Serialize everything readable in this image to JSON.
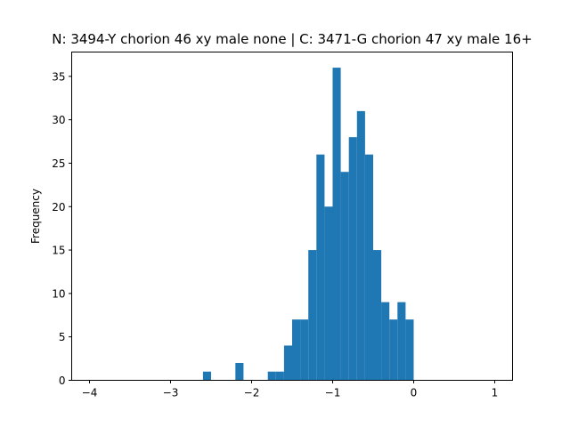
{
  "chart_data": {
    "type": "bar",
    "title": "N: 3494-Y chorion 46 xy male none | C: 3471-G chorion 47 xy male 16+",
    "xlabel": "",
    "ylabel": "Frequency",
    "xlim": [
      -4.22,
      1.22
    ],
    "ylim": [
      0,
      37.8
    ],
    "xticks": [
      -4,
      -3,
      -2,
      -1,
      0,
      1
    ],
    "xtick_labels": [
      "−4",
      "−3",
      "−2",
      "−1",
      "0",
      "1"
    ],
    "yticks": [
      0,
      5,
      10,
      15,
      20,
      25,
      30,
      35
    ],
    "ytick_labels": [
      "0",
      "5",
      "10",
      "15",
      "20",
      "25",
      "30",
      "35"
    ],
    "bin_width": 0.1,
    "bins": [
      {
        "x": -2.6,
        "value": 1
      },
      {
        "x": -2.2,
        "value": 2
      },
      {
        "x": -1.8,
        "value": 1
      },
      {
        "x": -1.7,
        "value": 1
      },
      {
        "x": -1.6,
        "value": 4
      },
      {
        "x": -1.5,
        "value": 7
      },
      {
        "x": -1.4,
        "value": 7
      },
      {
        "x": -1.3,
        "value": 15
      },
      {
        "x": -1.2,
        "value": 26
      },
      {
        "x": -1.1,
        "value": 20
      },
      {
        "x": -1.0,
        "value": 36
      },
      {
        "x": -0.9,
        "value": 24
      },
      {
        "x": -0.8,
        "value": 28
      },
      {
        "x": -0.7,
        "value": 31
      },
      {
        "x": -0.6,
        "value": 26
      },
      {
        "x": -0.5,
        "value": 15
      },
      {
        "x": -0.4,
        "value": 9
      },
      {
        "x": -0.3,
        "value": 7
      },
      {
        "x": -0.2,
        "value": 9
      },
      {
        "x": -0.1,
        "value": 7
      }
    ],
    "bar_color": "#1f77b4",
    "grid": false,
    "legend": "none"
  }
}
